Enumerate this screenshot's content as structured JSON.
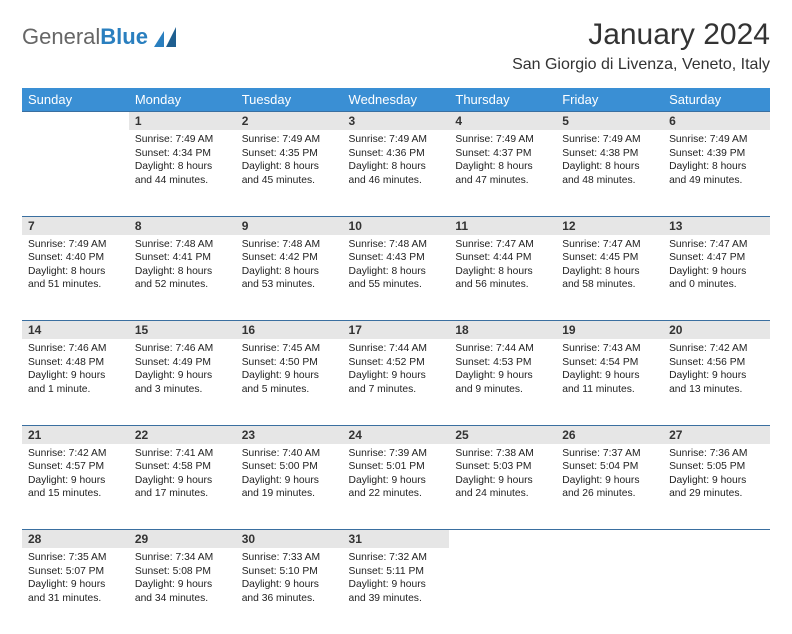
{
  "logo": {
    "text_gray": "General",
    "text_blue": "Blue"
  },
  "title": "January 2024",
  "location": "San Giorgio di Livenza, Veneto, Italy",
  "colors": {
    "header_bg": "#3a8fd4",
    "header_fg": "#ffffff",
    "daynum_bg": "#e6e6e6",
    "row_border": "#3a6fa0",
    "logo_blue": "#2a7fbf",
    "logo_gray": "#666666"
  },
  "weekdays": [
    "Sunday",
    "Monday",
    "Tuesday",
    "Wednesday",
    "Thursday",
    "Friday",
    "Saturday"
  ],
  "weeks": [
    [
      null,
      {
        "n": "1",
        "sr": "Sunrise: 7:49 AM",
        "ss": "Sunset: 4:34 PM",
        "d1": "Daylight: 8 hours",
        "d2": "and 44 minutes."
      },
      {
        "n": "2",
        "sr": "Sunrise: 7:49 AM",
        "ss": "Sunset: 4:35 PM",
        "d1": "Daylight: 8 hours",
        "d2": "and 45 minutes."
      },
      {
        "n": "3",
        "sr": "Sunrise: 7:49 AM",
        "ss": "Sunset: 4:36 PM",
        "d1": "Daylight: 8 hours",
        "d2": "and 46 minutes."
      },
      {
        "n": "4",
        "sr": "Sunrise: 7:49 AM",
        "ss": "Sunset: 4:37 PM",
        "d1": "Daylight: 8 hours",
        "d2": "and 47 minutes."
      },
      {
        "n": "5",
        "sr": "Sunrise: 7:49 AM",
        "ss": "Sunset: 4:38 PM",
        "d1": "Daylight: 8 hours",
        "d2": "and 48 minutes."
      },
      {
        "n": "6",
        "sr": "Sunrise: 7:49 AM",
        "ss": "Sunset: 4:39 PM",
        "d1": "Daylight: 8 hours",
        "d2": "and 49 minutes."
      }
    ],
    [
      {
        "n": "7",
        "sr": "Sunrise: 7:49 AM",
        "ss": "Sunset: 4:40 PM",
        "d1": "Daylight: 8 hours",
        "d2": "and 51 minutes."
      },
      {
        "n": "8",
        "sr": "Sunrise: 7:48 AM",
        "ss": "Sunset: 4:41 PM",
        "d1": "Daylight: 8 hours",
        "d2": "and 52 minutes."
      },
      {
        "n": "9",
        "sr": "Sunrise: 7:48 AM",
        "ss": "Sunset: 4:42 PM",
        "d1": "Daylight: 8 hours",
        "d2": "and 53 minutes."
      },
      {
        "n": "10",
        "sr": "Sunrise: 7:48 AM",
        "ss": "Sunset: 4:43 PM",
        "d1": "Daylight: 8 hours",
        "d2": "and 55 minutes."
      },
      {
        "n": "11",
        "sr": "Sunrise: 7:47 AM",
        "ss": "Sunset: 4:44 PM",
        "d1": "Daylight: 8 hours",
        "d2": "and 56 minutes."
      },
      {
        "n": "12",
        "sr": "Sunrise: 7:47 AM",
        "ss": "Sunset: 4:45 PM",
        "d1": "Daylight: 8 hours",
        "d2": "and 58 minutes."
      },
      {
        "n": "13",
        "sr": "Sunrise: 7:47 AM",
        "ss": "Sunset: 4:47 PM",
        "d1": "Daylight: 9 hours",
        "d2": "and 0 minutes."
      }
    ],
    [
      {
        "n": "14",
        "sr": "Sunrise: 7:46 AM",
        "ss": "Sunset: 4:48 PM",
        "d1": "Daylight: 9 hours",
        "d2": "and 1 minute."
      },
      {
        "n": "15",
        "sr": "Sunrise: 7:46 AM",
        "ss": "Sunset: 4:49 PM",
        "d1": "Daylight: 9 hours",
        "d2": "and 3 minutes."
      },
      {
        "n": "16",
        "sr": "Sunrise: 7:45 AM",
        "ss": "Sunset: 4:50 PM",
        "d1": "Daylight: 9 hours",
        "d2": "and 5 minutes."
      },
      {
        "n": "17",
        "sr": "Sunrise: 7:44 AM",
        "ss": "Sunset: 4:52 PM",
        "d1": "Daylight: 9 hours",
        "d2": "and 7 minutes."
      },
      {
        "n": "18",
        "sr": "Sunrise: 7:44 AM",
        "ss": "Sunset: 4:53 PM",
        "d1": "Daylight: 9 hours",
        "d2": "and 9 minutes."
      },
      {
        "n": "19",
        "sr": "Sunrise: 7:43 AM",
        "ss": "Sunset: 4:54 PM",
        "d1": "Daylight: 9 hours",
        "d2": "and 11 minutes."
      },
      {
        "n": "20",
        "sr": "Sunrise: 7:42 AM",
        "ss": "Sunset: 4:56 PM",
        "d1": "Daylight: 9 hours",
        "d2": "and 13 minutes."
      }
    ],
    [
      {
        "n": "21",
        "sr": "Sunrise: 7:42 AM",
        "ss": "Sunset: 4:57 PM",
        "d1": "Daylight: 9 hours",
        "d2": "and 15 minutes."
      },
      {
        "n": "22",
        "sr": "Sunrise: 7:41 AM",
        "ss": "Sunset: 4:58 PM",
        "d1": "Daylight: 9 hours",
        "d2": "and 17 minutes."
      },
      {
        "n": "23",
        "sr": "Sunrise: 7:40 AM",
        "ss": "Sunset: 5:00 PM",
        "d1": "Daylight: 9 hours",
        "d2": "and 19 minutes."
      },
      {
        "n": "24",
        "sr": "Sunrise: 7:39 AM",
        "ss": "Sunset: 5:01 PM",
        "d1": "Daylight: 9 hours",
        "d2": "and 22 minutes."
      },
      {
        "n": "25",
        "sr": "Sunrise: 7:38 AM",
        "ss": "Sunset: 5:03 PM",
        "d1": "Daylight: 9 hours",
        "d2": "and 24 minutes."
      },
      {
        "n": "26",
        "sr": "Sunrise: 7:37 AM",
        "ss": "Sunset: 5:04 PM",
        "d1": "Daylight: 9 hours",
        "d2": "and 26 minutes."
      },
      {
        "n": "27",
        "sr": "Sunrise: 7:36 AM",
        "ss": "Sunset: 5:05 PM",
        "d1": "Daylight: 9 hours",
        "d2": "and 29 minutes."
      }
    ],
    [
      {
        "n": "28",
        "sr": "Sunrise: 7:35 AM",
        "ss": "Sunset: 5:07 PM",
        "d1": "Daylight: 9 hours",
        "d2": "and 31 minutes."
      },
      {
        "n": "29",
        "sr": "Sunrise: 7:34 AM",
        "ss": "Sunset: 5:08 PM",
        "d1": "Daylight: 9 hours",
        "d2": "and 34 minutes."
      },
      {
        "n": "30",
        "sr": "Sunrise: 7:33 AM",
        "ss": "Sunset: 5:10 PM",
        "d1": "Daylight: 9 hours",
        "d2": "and 36 minutes."
      },
      {
        "n": "31",
        "sr": "Sunrise: 7:32 AM",
        "ss": "Sunset: 5:11 PM",
        "d1": "Daylight: 9 hours",
        "d2": "and 39 minutes."
      },
      null,
      null,
      null
    ]
  ]
}
